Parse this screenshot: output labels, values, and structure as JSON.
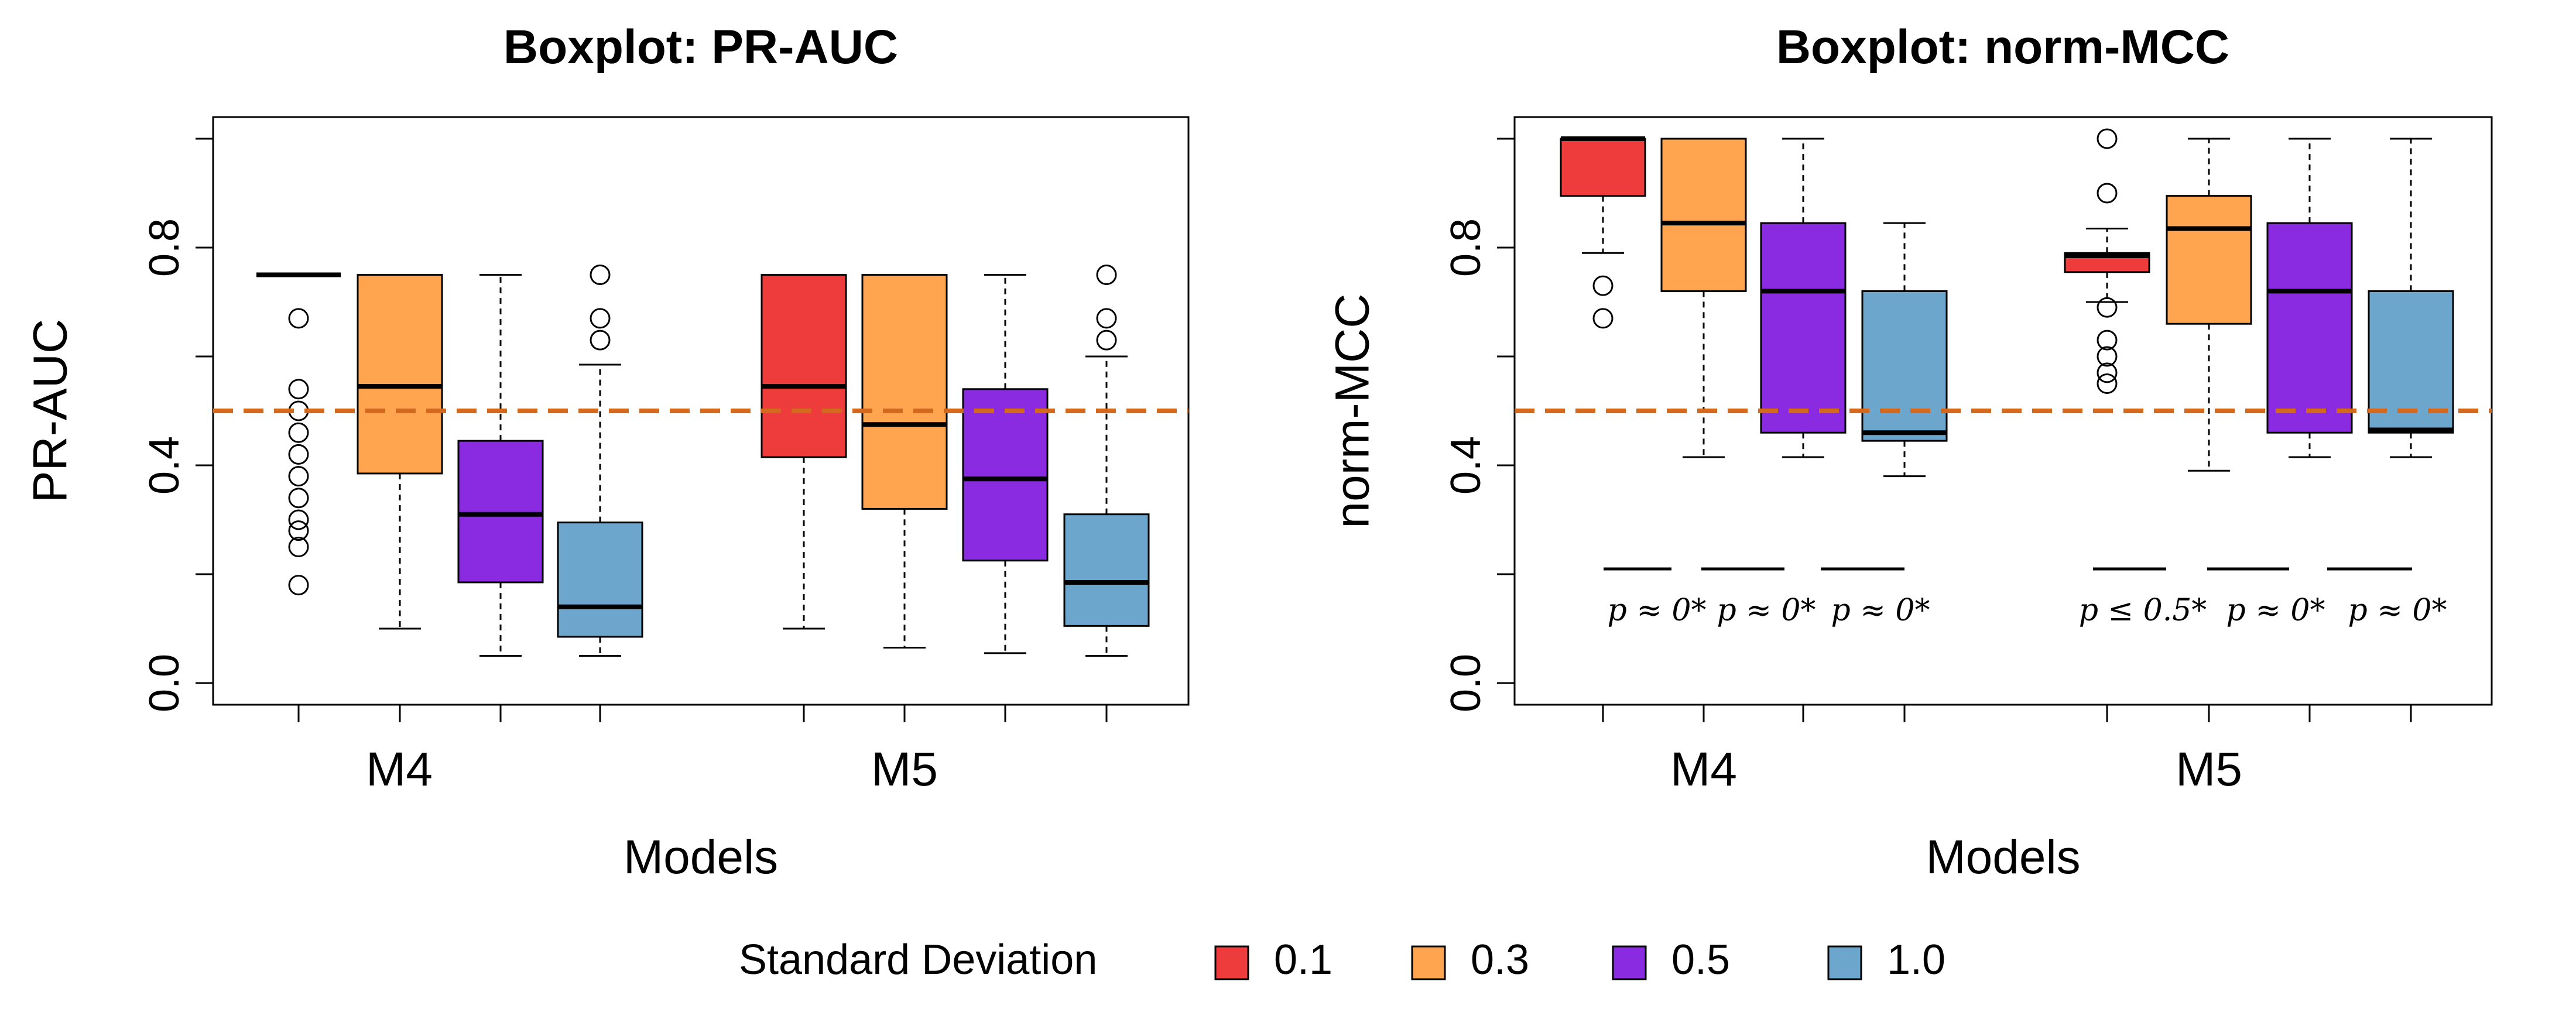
{
  "legend": {
    "title": "Standard Deviation",
    "items": [
      {
        "label": "0.1",
        "color": "#EE3B3B"
      },
      {
        "label": "0.3",
        "color": "#FFA54F"
      },
      {
        "label": "0.5",
        "color": "#8A2BE2"
      },
      {
        "label": "1.0",
        "color": "#6CA6CD"
      }
    ]
  },
  "chart_data": [
    {
      "type": "boxplot",
      "title": "Boxplot: PR-AUC",
      "xlabel": "Models",
      "ylabel": "PR-AUC",
      "ylim": [
        0,
        1
      ],
      "yticks": [
        0.0,
        0.4,
        0.8
      ],
      "ytick_labels": [
        "0.0",
        "0.4",
        "0.8"
      ],
      "categories": [
        "M4",
        "M5"
      ],
      "reference_line": {
        "y": 0.5,
        "style": "dashed",
        "color": "#D2691E"
      },
      "boxes": [
        {
          "group": "M4",
          "sd": "0.1",
          "min": 0.75,
          "q1": 0.75,
          "median": 0.75,
          "q3": 0.75,
          "max": 0.75,
          "outliers": [
            0.67,
            0.54,
            0.5,
            0.46,
            0.42,
            0.38,
            0.34,
            0.3,
            0.28,
            0.25,
            0.18
          ]
        },
        {
          "group": "M4",
          "sd": "0.3",
          "min": 0.1,
          "q1": 0.385,
          "median": 0.545,
          "q3": 0.75,
          "max": 0.75,
          "outliers": []
        },
        {
          "group": "M4",
          "sd": "0.5",
          "min": 0.05,
          "q1": 0.185,
          "median": 0.31,
          "q3": 0.445,
          "max": 0.75,
          "outliers": []
        },
        {
          "group": "M4",
          "sd": "1.0",
          "min": 0.05,
          "q1": 0.085,
          "median": 0.14,
          "q3": 0.295,
          "max": 0.585,
          "outliers": [
            0.75,
            0.67,
            0.63
          ]
        },
        {
          "group": "M5",
          "sd": "0.1",
          "min": 0.1,
          "q1": 0.415,
          "median": 0.545,
          "q3": 0.75,
          "max": 0.75,
          "outliers": []
        },
        {
          "group": "M5",
          "sd": "0.3",
          "min": 0.065,
          "q1": 0.32,
          "median": 0.475,
          "q3": 0.75,
          "max": 0.75,
          "outliers": []
        },
        {
          "group": "M5",
          "sd": "0.5",
          "min": 0.055,
          "q1": 0.225,
          "median": 0.375,
          "q3": 0.54,
          "max": 0.75,
          "outliers": []
        },
        {
          "group": "M5",
          "sd": "1.0",
          "min": 0.05,
          "q1": 0.105,
          "median": 0.185,
          "q3": 0.31,
          "max": 0.6,
          "outliers": [
            0.75,
            0.67,
            0.63
          ]
        }
      ],
      "annotations": []
    },
    {
      "type": "boxplot",
      "title": "Boxplot: norm-MCC",
      "xlabel": "Models",
      "ylabel": "norm-MCC",
      "ylim": [
        0,
        1
      ],
      "yticks": [
        0.0,
        0.4,
        0.8
      ],
      "ytick_labels": [
        "0.0",
        "0.4",
        "0.8"
      ],
      "categories": [
        "M4",
        "M5"
      ],
      "reference_line": {
        "y": 0.5,
        "style": "dashed",
        "color": "#D2691E"
      },
      "boxes": [
        {
          "group": "M4",
          "sd": "0.1",
          "min": 0.79,
          "q1": 0.895,
          "median": 1.0,
          "q3": 1.0,
          "max": 1.0,
          "outliers": [
            0.73,
            0.67
          ]
        },
        {
          "group": "M4",
          "sd": "0.3",
          "min": 0.415,
          "q1": 0.72,
          "median": 0.845,
          "q3": 1.0,
          "max": 1.0,
          "outliers": []
        },
        {
          "group": "M4",
          "sd": "0.5",
          "min": 0.415,
          "q1": 0.46,
          "median": 0.72,
          "q3": 0.845,
          "max": 1.0,
          "outliers": []
        },
        {
          "group": "M4",
          "sd": "1.0",
          "min": 0.38,
          "q1": 0.445,
          "median": 0.46,
          "q3": 0.72,
          "max": 0.845,
          "outliers": []
        },
        {
          "group": "M5",
          "sd": "0.1",
          "min": 0.7,
          "q1": 0.755,
          "median": 0.785,
          "q3": 0.79,
          "max": 0.835,
          "outliers": [
            1.0,
            0.9,
            0.69,
            0.63,
            0.6,
            0.57,
            0.55
          ]
        },
        {
          "group": "M5",
          "sd": "0.3",
          "min": 0.39,
          "q1": 0.66,
          "median": 0.835,
          "q3": 0.895,
          "max": 1.0,
          "outliers": []
        },
        {
          "group": "M5",
          "sd": "0.5",
          "min": 0.415,
          "q1": 0.46,
          "median": 0.72,
          "q3": 0.845,
          "max": 1.0,
          "outliers": []
        },
        {
          "group": "M5",
          "sd": "1.0",
          "min": 0.415,
          "q1": 0.46,
          "median": 0.465,
          "q3": 0.72,
          "max": 1.0,
          "outliers": []
        }
      ],
      "annotations": [
        {
          "text": "p  ≈  0*",
          "between": [
            "M4 0.1",
            "M4 0.3"
          ]
        },
        {
          "text": "p  ≈ 0*",
          "between": [
            "M4 0.3",
            "M4 0.5"
          ]
        },
        {
          "text": "p  ≈ 0*",
          "between": [
            "M4 0.5",
            "M4 1.0"
          ]
        },
        {
          "text": "p  ≤ 0.5*",
          "between": [
            "M5 0.1",
            "M5 0.3"
          ]
        },
        {
          "text": "p  ≈ 0*",
          "between": [
            "M5 0.3",
            "M5 0.5"
          ]
        },
        {
          "text": "p  ≈ 0*",
          "between": [
            "M5 0.5",
            "M5 1.0"
          ]
        }
      ]
    }
  ]
}
